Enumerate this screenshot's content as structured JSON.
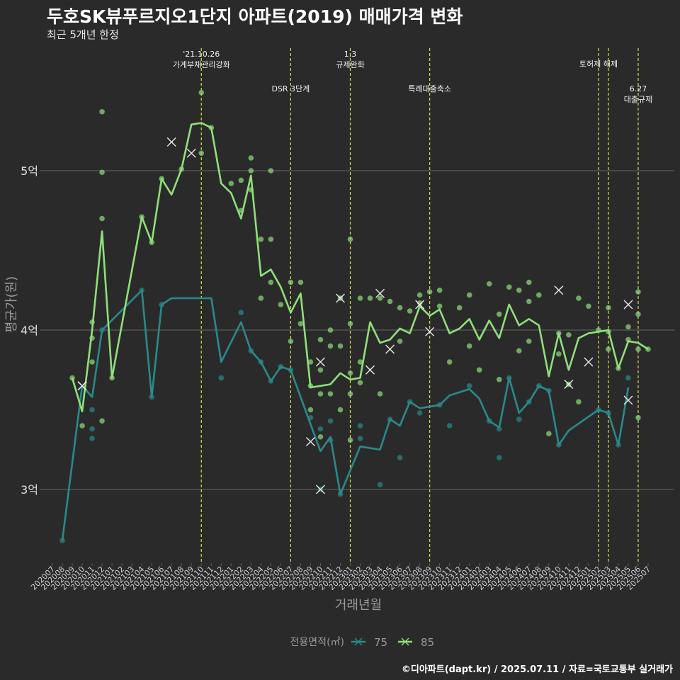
{
  "title": "두호SK뷰푸르지오1단지 아파트(2019) 매매가격 변화",
  "subtitle": "최근 5개년 한정",
  "caption": "©디아파트(dapt.kr) / 2025.07.11 / 자료=국토교통부 실거래가",
  "colors": {
    "background": "#2b2a2b",
    "grid": "#5b5a5b",
    "s75": "#2a8a8a",
    "s85": "#8fe07a",
    "event": "#d4e04a"
  },
  "chart_data": {
    "type": "line",
    "xlabel": "거래년월",
    "ylabel": "평균가(원)",
    "x_categories": [
      "202007",
      "202008",
      "202009",
      "202010",
      "202011",
      "202012",
      "202101",
      "202102",
      "202103",
      "202104",
      "202105",
      "202106",
      "202107",
      "202108",
      "202109",
      "202110",
      "202111",
      "202112",
      "202201",
      "202202",
      "202203",
      "202204",
      "202205",
      "202206",
      "202207",
      "202208",
      "202209",
      "202210",
      "202211",
      "202212",
      "202301",
      "202302",
      "202303",
      "202304",
      "202305",
      "202306",
      "202307",
      "202308",
      "202309",
      "202310",
      "202311",
      "202312",
      "202401",
      "202402",
      "202403",
      "202404",
      "202405",
      "202406",
      "202407",
      "202408",
      "202409",
      "202410",
      "202411",
      "202412",
      "202501",
      "202502",
      "202503",
      "202504",
      "202505",
      "202506",
      "202507"
    ],
    "y_ticks": [
      {
        "value": 30000,
        "label": "3억"
      },
      {
        "value": 40000,
        "label": "4억"
      },
      {
        "value": 50000,
        "label": "5억"
      }
    ],
    "ylim": [
      25700,
      56000
    ],
    "grid": true,
    "legend": {
      "title": "전용면적(㎡)",
      "placement": "bottom",
      "items": [
        "75",
        "85"
      ]
    },
    "events": [
      {
        "month": "202110",
        "label": "'21.10.26\n가계부채관리강화",
        "tier": "upper"
      },
      {
        "month": "202207",
        "label": "DSR 3단계",
        "tier": "lower"
      },
      {
        "month": "202301",
        "label": "1.3\n규제완화",
        "tier": "upper"
      },
      {
        "month": "202309",
        "label": "특례대출축소",
        "tier": "lower"
      },
      {
        "month": "202502",
        "label": "토허제 해제",
        "tier": "upper"
      },
      {
        "month": "202503",
        "label": "",
        "tier": "upper"
      },
      {
        "month": "202506",
        "label": "6.27\n대출규제",
        "tier": "lower"
      }
    ],
    "series": [
      {
        "name": "75",
        "line": [
          [
            "202008",
            26800
          ],
          [
            "202010",
            36500
          ],
          [
            "202011",
            35800
          ],
          [
            "202012",
            40000
          ],
          [
            "202104",
            42500
          ],
          [
            "202105",
            35800
          ],
          [
            "202106",
            41600
          ],
          [
            "202107",
            42000
          ],
          [
            "202110",
            42000
          ],
          [
            "202111",
            42000
          ],
          [
            "202112",
            38000
          ],
          [
            "202202",
            40500
          ],
          [
            "202203",
            38700
          ],
          [
            "202204",
            38000
          ],
          [
            "202205",
            36800
          ],
          [
            "202206",
            37700
          ],
          [
            "202207",
            37500
          ],
          [
            "202210",
            32400
          ],
          [
            "202211",
            33300
          ],
          [
            "202212",
            29700
          ],
          [
            "202302",
            32700
          ],
          [
            "202304",
            32500
          ],
          [
            "202305",
            34400
          ],
          [
            "202306",
            34000
          ],
          [
            "202307",
            35500
          ],
          [
            "202308",
            35100
          ],
          [
            "202310",
            35300
          ],
          [
            "202311",
            35900
          ],
          [
            "202401",
            36300
          ],
          [
            "202402",
            35700
          ],
          [
            "202403",
            34300
          ],
          [
            "202404",
            33900
          ],
          [
            "202405",
            37000
          ],
          [
            "202406",
            34800
          ],
          [
            "202407",
            35500
          ],
          [
            "202408",
            36500
          ],
          [
            "202409",
            36200
          ],
          [
            "202410",
            32800
          ],
          [
            "202411",
            33700
          ],
          [
            "202502",
            35000
          ],
          [
            "202503",
            34800
          ],
          [
            "202504",
            32800
          ],
          [
            "202505",
            36400
          ]
        ],
        "points": [
          [
            "202008",
            26800
          ],
          [
            "202011",
            35000
          ],
          [
            "202011",
            33800
          ],
          [
            "202011",
            33200
          ],
          [
            "202012",
            40000
          ],
          [
            "202104",
            42500
          ],
          [
            "202105",
            35800
          ],
          [
            "202106",
            41600
          ],
          [
            "202112",
            37000
          ],
          [
            "202202",
            41100
          ],
          [
            "202203",
            38700
          ],
          [
            "202204",
            38000
          ],
          [
            "202205",
            36800
          ],
          [
            "202206",
            37700
          ],
          [
            "202207",
            37500
          ],
          [
            "202209",
            34500
          ],
          [
            "202210",
            30000
          ],
          [
            "202210",
            33800
          ],
          [
            "202211",
            34300
          ],
          [
            "202211",
            33100
          ],
          [
            "202212",
            29700
          ],
          [
            "202302",
            34000
          ],
          [
            "202302",
            33200
          ],
          [
            "202304",
            30300
          ],
          [
            "202305",
            34400
          ],
          [
            "202306",
            32000
          ],
          [
            "202307",
            35500
          ],
          [
            "202308",
            34800
          ],
          [
            "202310",
            35300
          ],
          [
            "202311",
            34000
          ],
          [
            "202401",
            36500
          ],
          [
            "202403",
            34300
          ],
          [
            "202404",
            33800
          ],
          [
            "202404",
            32000
          ],
          [
            "202405",
            37000
          ],
          [
            "202406",
            34400
          ],
          [
            "202407",
            35500
          ],
          [
            "202408",
            36500
          ],
          [
            "202409",
            36200
          ],
          [
            "202410",
            32800
          ],
          [
            "202502",
            35000
          ],
          [
            "202503",
            34800
          ],
          [
            "202504",
            32800
          ],
          [
            "202505",
            37000
          ]
        ],
        "extremes": [
          [
            "202010",
            36500
          ],
          [
            "202210",
            30000
          ],
          [
            "202505",
            35600
          ]
        ]
      },
      {
        "name": "85",
        "line": [
          [
            "202009",
            37000
          ],
          [
            "202010",
            34900
          ],
          [
            "202011",
            40000
          ],
          [
            "202012",
            46200
          ],
          [
            "202101",
            37000
          ],
          [
            "202104",
            47100
          ],
          [
            "202105",
            45500
          ],
          [
            "202106",
            49500
          ],
          [
            "202107",
            48500
          ],
          [
            "202108",
            50100
          ],
          [
            "202109",
            52900
          ],
          [
            "202110",
            53000
          ],
          [
            "202111",
            52700
          ],
          [
            "202112",
            49200
          ],
          [
            "202201",
            48600
          ],
          [
            "202202",
            47000
          ],
          [
            "202203",
            49700
          ],
          [
            "202204",
            43400
          ],
          [
            "202205",
            43800
          ],
          [
            "202206",
            42700
          ],
          [
            "202207",
            41100
          ],
          [
            "202208",
            42300
          ],
          [
            "202209",
            36400
          ],
          [
            "202210",
            36500
          ],
          [
            "202211",
            36600
          ],
          [
            "202212",
            37300
          ],
          [
            "202301",
            36900
          ],
          [
            "202302",
            37000
          ],
          [
            "202303",
            40500
          ],
          [
            "202304",
            39200
          ],
          [
            "202305",
            39400
          ],
          [
            "202306",
            40100
          ],
          [
            "202307",
            39800
          ],
          [
            "202308",
            41500
          ],
          [
            "202309",
            40900
          ],
          [
            "202310",
            41300
          ],
          [
            "202311",
            39800
          ],
          [
            "202312",
            40100
          ],
          [
            "202401",
            40700
          ],
          [
            "202402",
            39400
          ],
          [
            "202403",
            40600
          ],
          [
            "202404",
            39500
          ],
          [
            "202405",
            41600
          ],
          [
            "202406",
            40300
          ],
          [
            "202407",
            40700
          ],
          [
            "202408",
            40300
          ],
          [
            "202409",
            37100
          ],
          [
            "202410",
            39800
          ],
          [
            "202411",
            37500
          ],
          [
            "202412",
            39500
          ],
          [
            "202501",
            39800
          ],
          [
            "202502",
            39900
          ],
          [
            "202503",
            40000
          ],
          [
            "202504",
            37600
          ],
          [
            "202505",
            39300
          ],
          [
            "202506",
            39200
          ],
          [
            "202507",
            38800
          ]
        ],
        "points": [
          [
            "202009",
            37000
          ],
          [
            "202010",
            34000
          ],
          [
            "202011",
            40500
          ],
          [
            "202011",
            39500
          ],
          [
            "202011",
            38000
          ],
          [
            "202012",
            53700
          ],
          [
            "202012",
            49900
          ],
          [
            "202012",
            47000
          ],
          [
            "202012",
            34300
          ],
          [
            "202101",
            37000
          ],
          [
            "202104",
            47100
          ],
          [
            "202105",
            45500
          ],
          [
            "202106",
            49500
          ],
          [
            "202108",
            50100
          ],
          [
            "202110",
            54900
          ],
          [
            "202110",
            51100
          ],
          [
            "202111",
            52700
          ],
          [
            "202201",
            49200
          ],
          [
            "202202",
            49400
          ],
          [
            "202202",
            47500
          ],
          [
            "202203",
            50800
          ],
          [
            "202203",
            50000
          ],
          [
            "202203",
            48800
          ],
          [
            "202204",
            45700
          ],
          [
            "202204",
            42000
          ],
          [
            "202205",
            45700
          ],
          [
            "202205",
            43000
          ],
          [
            "202205",
            50000
          ],
          [
            "202206",
            41600
          ],
          [
            "202207",
            43000
          ],
          [
            "202207",
            39300
          ],
          [
            "202208",
            43000
          ],
          [
            "202208",
            40400
          ],
          [
            "202209",
            38000
          ],
          [
            "202209",
            36500
          ],
          [
            "202209",
            35000
          ],
          [
            "202210",
            39400
          ],
          [
            "202210",
            37500
          ],
          [
            "202210",
            36000
          ],
          [
            "202210",
            33300
          ],
          [
            "202211",
            40000
          ],
          [
            "202211",
            39000
          ],
          [
            "202211",
            36000
          ],
          [
            "202212",
            42000
          ],
          [
            "202212",
            39000
          ],
          [
            "202212",
            35000
          ],
          [
            "202301",
            45700
          ],
          [
            "202301",
            40400
          ],
          [
            "202301",
            37300
          ],
          [
            "202301",
            36000
          ],
          [
            "202301",
            33100
          ],
          [
            "202302",
            42000
          ],
          [
            "202302",
            38000
          ],
          [
            "202302",
            36700
          ],
          [
            "202303",
            42000
          ],
          [
            "202304",
            42000
          ],
          [
            "202304",
            36000
          ],
          [
            "202305",
            41800
          ],
          [
            "202306",
            41400
          ],
          [
            "202306",
            39300
          ],
          [
            "202307",
            41200
          ],
          [
            "202308",
            42200
          ],
          [
            "202308",
            41700
          ],
          [
            "202309",
            42400
          ],
          [
            "202310",
            42500
          ],
          [
            "202310",
            41500
          ],
          [
            "202311",
            38000
          ],
          [
            "202312",
            41400
          ],
          [
            "202401",
            42200
          ],
          [
            "202401",
            39000
          ],
          [
            "202402",
            37500
          ],
          [
            "202403",
            42900
          ],
          [
            "202404",
            41000
          ],
          [
            "202404",
            36900
          ],
          [
            "202405",
            42700
          ],
          [
            "202406",
            42500
          ],
          [
            "202406",
            38700
          ],
          [
            "202407",
            43000
          ],
          [
            "202407",
            41800
          ],
          [
            "202407",
            39300
          ],
          [
            "202408",
            42200
          ],
          [
            "202409",
            33500
          ],
          [
            "202410",
            39800
          ],
          [
            "202410",
            38500
          ],
          [
            "202411",
            39700
          ],
          [
            "202411",
            36600
          ],
          [
            "202412",
            42000
          ],
          [
            "202412",
            35500
          ],
          [
            "202501",
            41500
          ],
          [
            "202502",
            40000
          ],
          [
            "202503",
            41400
          ],
          [
            "202503",
            39900
          ],
          [
            "202503",
            38800
          ],
          [
            "202504",
            37600
          ],
          [
            "202505",
            40200
          ],
          [
            "202505",
            39400
          ],
          [
            "202506",
            42400
          ],
          [
            "202506",
            41000
          ],
          [
            "202506",
            38800
          ],
          [
            "202506",
            34500
          ],
          [
            "202507",
            38800
          ]
        ],
        "extremes": [
          [
            "202010",
            36500
          ],
          [
            "202107",
            51800
          ],
          [
            "202109",
            51100
          ],
          [
            "202209",
            33000
          ],
          [
            "202210",
            38000
          ],
          [
            "202212",
            42000
          ],
          [
            "202303",
            37500
          ],
          [
            "202304",
            42300
          ],
          [
            "202305",
            38800
          ],
          [
            "202308",
            41600
          ],
          [
            "202309",
            39900
          ],
          [
            "202410",
            42500
          ],
          [
            "202411",
            36600
          ],
          [
            "202501",
            38000
          ],
          [
            "202505",
            41600
          ]
        ]
      }
    ]
  }
}
